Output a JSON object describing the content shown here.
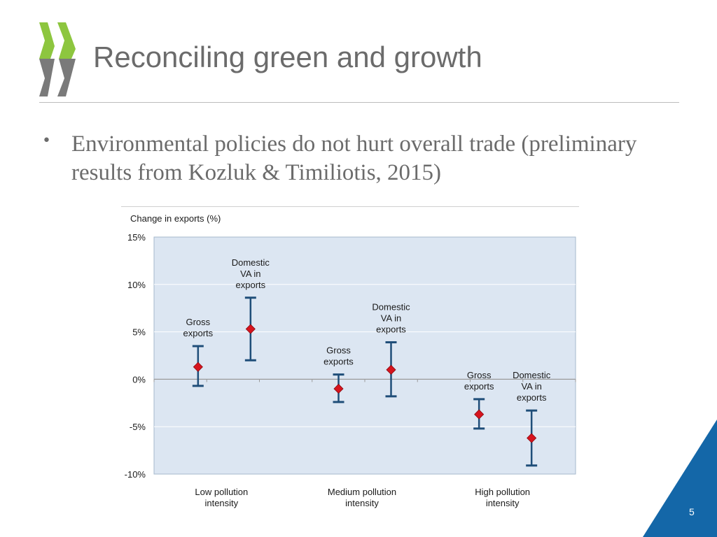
{
  "slide": {
    "title": "Reconciling green and growth",
    "bullet": "Environmental policies do not hurt overall trade (preliminary results from Kozluk & Timiliotis, 2015)",
    "page_number": "5"
  },
  "colors": {
    "title_text": "#6b6b6b",
    "logo_green": "#8dc63f",
    "logo_gray": "#7a7a7a",
    "plot_background": "#dce6f2",
    "error_bar": "#1f4e79",
    "marker": "#d7141e",
    "corner_blue": "#1467a8"
  },
  "icons": {
    "logo": "oecd-chevron-logo"
  },
  "chart_data": {
    "type": "scatter",
    "title": "",
    "ylabel": "Change in exports (%)",
    "xlabel": "",
    "ylim": [
      -10,
      15
    ],
    "yticks": [
      {
        "value": 15,
        "label": "15%"
      },
      {
        "value": 10,
        "label": "10%"
      },
      {
        "value": 5,
        "label": "5%"
      },
      {
        "value": 0,
        "label": "0%"
      },
      {
        "value": -5,
        "label": "-5%"
      },
      {
        "value": -10,
        "label": "-10%"
      }
    ],
    "grid": true,
    "legend": "none",
    "categories": [
      "Low pollution intensity",
      "Medium pollution intensity",
      "High pollution intensity"
    ],
    "points": [
      {
        "category": "Low pollution intensity",
        "label": "Gross exports",
        "value": 1.3,
        "low": -0.7,
        "high": 3.5
      },
      {
        "category": "Low pollution intensity",
        "label": "Domestic VA in exports",
        "value": 5.3,
        "low": 2.0,
        "high": 8.6
      },
      {
        "category": "Medium pollution intensity",
        "label": "Gross exports",
        "value": -1.0,
        "low": -2.4,
        "high": 0.5
      },
      {
        "category": "Medium pollution intensity",
        "label": "Domestic VA in exports",
        "value": 1.0,
        "low": -1.8,
        "high": 3.9
      },
      {
        "category": "High pollution intensity",
        "label": "Gross exports",
        "value": -3.7,
        "low": -5.2,
        "high": -2.1
      },
      {
        "category": "High pollution intensity",
        "label": "Domestic VA in exports",
        "value": -6.2,
        "low": -9.1,
        "high": -3.3
      }
    ]
  }
}
